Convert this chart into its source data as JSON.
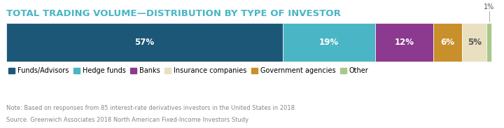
{
  "title": "TOTAL TRADING VOLUME—DISTRIBUTION BY TYPE OF INVESTOR",
  "segments": [
    {
      "label": "Funds/Advisors",
      "value": 57,
      "color": "#1d5778",
      "text_color": "#ffffff"
    },
    {
      "label": "Hedge funds",
      "value": 19,
      "color": "#4ab5c4",
      "text_color": "#ffffff"
    },
    {
      "label": "Banks",
      "value": 12,
      "color": "#8b3a8f",
      "text_color": "#ffffff"
    },
    {
      "label": "Government agencies",
      "value": 6,
      "color": "#c8902a",
      "text_color": "#ffffff"
    },
    {
      "label": "Insurance companies",
      "value": 5,
      "color": "#e8e0c0",
      "text_color": "#555555"
    },
    {
      "label": "Other",
      "value": 1,
      "color": "#a8c888",
      "text_color": "#555555"
    }
  ],
  "note_line1": "Note: Based on responses from 85 interest-rate derivatives investors in the United States in 2018.",
  "note_line2": "Source. Greenwich Associates 2018 North American Fixed-Income Investors Study",
  "title_color": "#4ab5c4",
  "note_color": "#888888",
  "bg_color": "#ffffff",
  "legend_order": [
    0,
    1,
    2,
    4,
    3,
    5
  ]
}
